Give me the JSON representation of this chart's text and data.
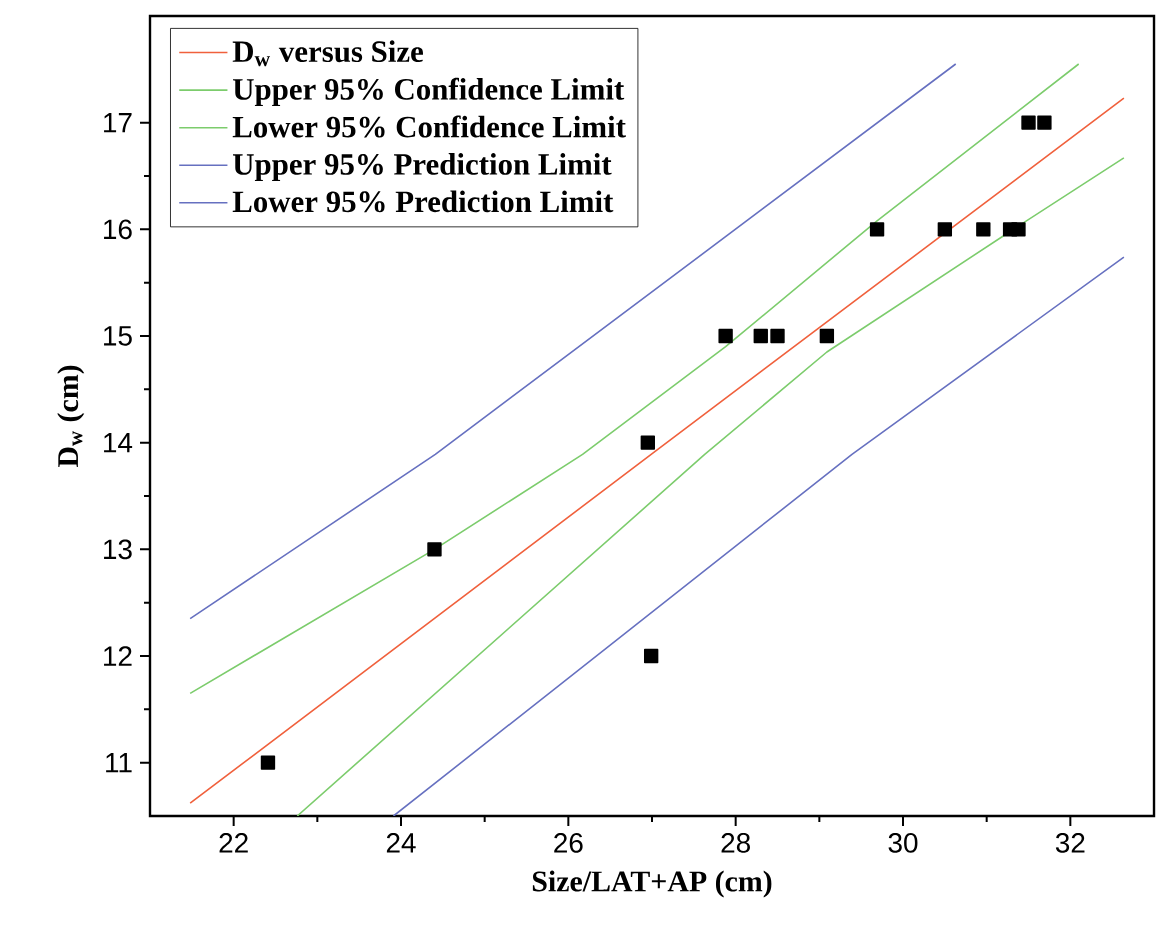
{
  "chart_data": {
    "type": "scatter",
    "xlabel": "Size/LAT+AP (cm)",
    "ylabel": "D$_{w}$ (cm)",
    "xlim": [
      21,
      33
    ],
    "ylim": [
      10.5,
      18
    ],
    "xticks": [
      22,
      24,
      26,
      28,
      30,
      32
    ],
    "yticks": [
      11,
      12,
      13,
      14,
      15,
      16,
      17
    ],
    "legend": "top left",
    "grid": false,
    "series": [
      {
        "marker": "square",
        "color": "#000000",
        "x": [
          22.41,
          24.4,
          26.95,
          26.99,
          27.88,
          28.3,
          28.5,
          29.09,
          29.69,
          30.5,
          30.96,
          31.28,
          31.38,
          31.5,
          31.69
        ],
        "values": [
          11,
          13,
          14,
          12,
          15,
          15,
          15,
          15,
          16,
          16,
          16,
          16,
          16,
          17,
          17
        ]
      },
      {
        "type": "line",
        "name": "D$_{w}$ versus Size",
        "color": "#f0603c",
        "x": [
          21.48,
          26.99,
          32.64
        ],
        "values": [
          10.62,
          13.89,
          17.23
        ]
      },
      {
        "type": "line",
        "name": "Upper 95% Confidence Limit",
        "color": "#7ccc6c",
        "x": [
          21.48,
          24.4,
          26.17,
          27.88,
          29.69,
          32.1
        ],
        "values": [
          11.65,
          13,
          13.89,
          14.9,
          16.08,
          17.55
        ]
      },
      {
        "type": "line",
        "name": "Lower 95% Confidence Limit",
        "color": "#7ccc6c",
        "x": [
          22.76,
          27.63,
          29.09,
          31.28,
          32.64
        ],
        "values": [
          10.5,
          13.89,
          14.85,
          15.98,
          16.67
        ]
      },
      {
        "type": "line",
        "name": "Upper 95% Prediction Limit",
        "color": "#6670c0",
        "x": [
          21.48,
          24.41,
          30.63
        ],
        "values": [
          12.35,
          13.89,
          17.55
        ]
      },
      {
        "type": "line",
        "name": "Lower 95% Prediction Limit",
        "color": "#6670c0",
        "x": [
          23.91,
          29.39,
          32.64
        ],
        "values": [
          10.5,
          13.89,
          15.74
        ]
      }
    ]
  }
}
